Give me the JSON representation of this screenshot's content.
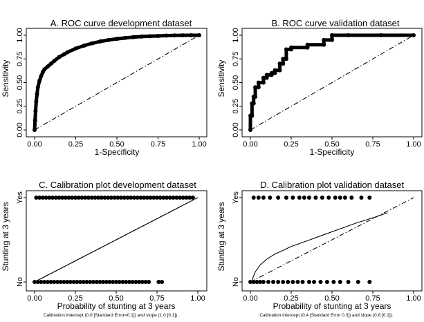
{
  "chart_data": [
    {
      "type": "line",
      "title": "A. ROC curve development dataset",
      "xlabel": "1-Specificity",
      "ylabel": "Sensitivity",
      "xlim": [
        0,
        1
      ],
      "ylim": [
        0,
        1
      ],
      "xticks": [
        "0.00",
        "0.25",
        "0.50",
        "0.75",
        "1.00"
      ],
      "yticks": [
        "0.00",
        "0.25",
        "0.50",
        "0.75",
        "1.00"
      ],
      "grid": false,
      "series": [
        {
          "style": "markers",
          "color": "#000000",
          "x": [
            0,
            0.003,
            0.006,
            0.01,
            0.015,
            0.02,
            0.03,
            0.04,
            0.05,
            0.06,
            0.08,
            0.1,
            0.12,
            0.15,
            0.18,
            0.2,
            0.25,
            0.3,
            0.35,
            0.4,
            0.45,
            0.5,
            0.55,
            0.6,
            0.65,
            0.7,
            0.75,
            0.8,
            0.85,
            0.9,
            0.95,
            1.0
          ],
          "y": [
            0,
            0.1,
            0.2,
            0.3,
            0.38,
            0.45,
            0.52,
            0.57,
            0.61,
            0.64,
            0.67,
            0.7,
            0.73,
            0.77,
            0.8,
            0.82,
            0.86,
            0.89,
            0.915,
            0.935,
            0.95,
            0.962,
            0.972,
            0.98,
            0.986,
            0.99,
            0.993,
            0.996,
            0.998,
            0.999,
            1.0,
            1.0
          ]
        },
        {
          "style": "dash-dot",
          "color": "#000000",
          "x": [
            0,
            1
          ],
          "y": [
            0,
            1
          ]
        }
      ]
    },
    {
      "type": "line",
      "title": "B. ROC curve validation dataset",
      "xlabel": "1-Specificity",
      "ylabel": "Sensitivity",
      "xlim": [
        0,
        1
      ],
      "ylim": [
        0,
        1
      ],
      "xticks": [
        "0.00",
        "0.25",
        "0.50",
        "0.75",
        "1.00"
      ],
      "yticks": [
        "0.00",
        "0.25",
        "0.50",
        "0.75",
        "1.00"
      ],
      "grid": false,
      "series": [
        {
          "style": "markers",
          "color": "#000000",
          "x": [
            0,
            0,
            0.01,
            0.01,
            0.02,
            0.02,
            0.03,
            0.03,
            0.05,
            0.05,
            0.08,
            0.08,
            0.1,
            0.1,
            0.13,
            0.13,
            0.15,
            0.15,
            0.18,
            0.18,
            0.2,
            0.2,
            0.22,
            0.22,
            0.25,
            0.25,
            0.35,
            0.35,
            0.45,
            0.45,
            0.5,
            0.5,
            0.6,
            0.8,
            1.0
          ],
          "y": [
            0,
            0.15,
            0.15,
            0.28,
            0.28,
            0.35,
            0.35,
            0.45,
            0.45,
            0.5,
            0.5,
            0.55,
            0.55,
            0.58,
            0.58,
            0.6,
            0.6,
            0.63,
            0.63,
            0.7,
            0.7,
            0.75,
            0.75,
            0.85,
            0.85,
            0.87,
            0.87,
            0.9,
            0.9,
            0.95,
            0.95,
            1.0,
            1.0,
            1.0,
            1.0
          ]
        },
        {
          "style": "dash-dot",
          "color": "#000000",
          "x": [
            0,
            1
          ],
          "y": [
            0,
            1
          ]
        }
      ]
    },
    {
      "type": "scatter",
      "title": "C. Calibration plot development dataset",
      "xlabel": "Probability of stunting at 3 years",
      "ylabel": "Stunting at 3 years",
      "xlim": [
        0,
        1
      ],
      "ylim": [
        0,
        1
      ],
      "xticks": [
        "0.00",
        "0.25",
        "0.50",
        "0.75",
        "1.00"
      ],
      "ycategories": [
        "No",
        "Yes"
      ],
      "grid": false,
      "annotation": "Calibration intercept (0.0 [Standard Error=0.1]) and slope (1.0 [0.1]).",
      "series": [
        {
          "style": "points",
          "name": "Yes",
          "y_value": 1,
          "x": [
            0.01,
            0.03,
            0.05,
            0.07,
            0.09,
            0.11,
            0.13,
            0.15,
            0.17,
            0.19,
            0.21,
            0.23,
            0.25,
            0.27,
            0.29,
            0.31,
            0.33,
            0.35,
            0.37,
            0.39,
            0.41,
            0.43,
            0.45,
            0.47,
            0.49,
            0.51,
            0.53,
            0.55,
            0.57,
            0.59,
            0.61,
            0.63,
            0.65,
            0.67,
            0.69,
            0.71,
            0.73,
            0.75,
            0.77,
            0.79,
            0.81,
            0.83,
            0.85,
            0.87,
            0.89,
            0.91,
            0.93,
            0.95,
            0.97
          ]
        },
        {
          "style": "points",
          "name": "No",
          "y_value": 0,
          "x": [
            0.0,
            0.02,
            0.04,
            0.06,
            0.08,
            0.1,
            0.12,
            0.14,
            0.16,
            0.18,
            0.2,
            0.22,
            0.24,
            0.26,
            0.28,
            0.3,
            0.32,
            0.34,
            0.36,
            0.38,
            0.4,
            0.42,
            0.44,
            0.46,
            0.48,
            0.5,
            0.52,
            0.54,
            0.56,
            0.58,
            0.6,
            0.62,
            0.64,
            0.66,
            0.68,
            0.7,
            0.76,
            0.78
          ]
        },
        {
          "style": "solid",
          "name": "calibration",
          "x": [
            0,
            0.25,
            0.5,
            0.75,
            0.98
          ],
          "y": [
            0,
            0.25,
            0.5,
            0.75,
            0.98
          ]
        },
        {
          "style": "dash-dot",
          "name": "reference",
          "x": [
            0,
            1
          ],
          "y": [
            0,
            1
          ]
        }
      ]
    },
    {
      "type": "scatter",
      "title": "D. Calibration plot validation dataset",
      "xlabel": "Probability of stunting at 3 years",
      "ylabel": "Stunting at 3 years",
      "xlim": [
        0,
        1
      ],
      "ylim": [
        0,
        1
      ],
      "xticks": [
        "0.00",
        "0.25",
        "0.50",
        "0.75",
        "1.00"
      ],
      "ycategories": [
        "No",
        "Yes"
      ],
      "grid": false,
      "annotation": "Calibration intercept (0.4 [Standard Error 0.3]) and slope (0.8 [0.1]).",
      "series": [
        {
          "style": "points",
          "name": "Yes",
          "y_value": 1,
          "x": [
            0.02,
            0.05,
            0.08,
            0.12,
            0.17,
            0.22,
            0.26,
            0.3,
            0.33,
            0.36,
            0.4,
            0.44,
            0.48,
            0.52,
            0.55,
            0.58,
            0.62,
            0.68,
            0.73
          ]
        },
        {
          "style": "points",
          "name": "No",
          "y_value": 0,
          "x": [
            0.0,
            0.02,
            0.04,
            0.06,
            0.08,
            0.11,
            0.14,
            0.17,
            0.2,
            0.23,
            0.26,
            0.29,
            0.32,
            0.36,
            0.39,
            0.43,
            0.47,
            0.51,
            0.55,
            0.6,
            0.66,
            0.73
          ]
        },
        {
          "style": "solid",
          "name": "calibration",
          "x": [
            0.01,
            0.03,
            0.06,
            0.1,
            0.15,
            0.25,
            0.35,
            0.45,
            0.55,
            0.65,
            0.75,
            0.84
          ],
          "y": [
            0.02,
            0.12,
            0.2,
            0.27,
            0.33,
            0.42,
            0.49,
            0.56,
            0.63,
            0.7,
            0.76,
            0.82
          ]
        },
        {
          "style": "dash-dot",
          "name": "reference",
          "x": [
            0,
            1
          ],
          "y": [
            0,
            1
          ]
        }
      ]
    }
  ]
}
